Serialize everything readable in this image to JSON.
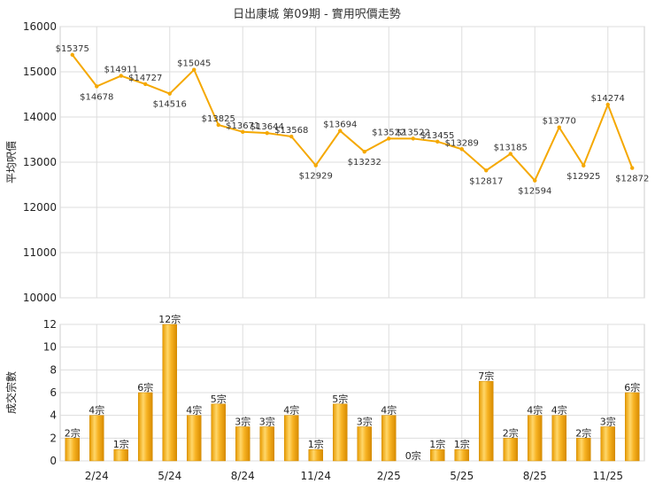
{
  "chart_data": [
    {
      "type": "line",
      "title": "日出康城 第09期 - 實用呎價走勢",
      "xlabel": "",
      "ylabel": "平均呎價",
      "ylim": [
        10000,
        16000
      ],
      "yticks": [
        "16000",
        "15000",
        "14000",
        "13000",
        "12000",
        "11000",
        "10000"
      ],
      "grid": true,
      "color": "#f5a800",
      "labels": [
        "$15375",
        "$14678",
        "$14911",
        "$14727",
        "$14516",
        "$15045",
        "$13825",
        "$13671",
        "$13644",
        "$13568",
        "$12929",
        "$13694",
        "$13232",
        "$13522",
        "$13522",
        "$13455",
        "$13289",
        "$12817",
        "$13185",
        "$12594",
        "$13770",
        "$12925",
        "$14274",
        "$12872"
      ],
      "series": [
        {
          "values": [
            15375,
            14678,
            14911,
            14727,
            14516,
            15045,
            13825,
            13671,
            13644,
            13568,
            12929,
            13694,
            13232,
            13522,
            13522,
            13455,
            13289,
            12817,
            13185,
            12594,
            13770,
            12925,
            14274,
            12872
          ]
        }
      ]
    },
    {
      "type": "bar",
      "xlabel": "",
      "ylabel": "成交宗數",
      "ylim": [
        0,
        12
      ],
      "yticks": [
        "12",
        "10",
        "8",
        "6",
        "4",
        "2",
        "0"
      ],
      "grid": true,
      "color": "#f5a800",
      "categories": [
        "",
        "2/24",
        "",
        "",
        "5/24",
        "",
        "",
        "8/24",
        "",
        "",
        "11/24",
        "",
        "",
        "2/25",
        "",
        "",
        "5/25",
        "",
        "",
        "8/25",
        "",
        "",
        "11/25",
        ""
      ],
      "labels": [
        "2宗",
        "4宗",
        "1宗",
        "6宗",
        "12宗",
        "4宗",
        "5宗",
        "3宗",
        "3宗",
        "4宗",
        "1宗",
        "5宗",
        "3宗",
        "4宗",
        "0宗",
        "1宗",
        "1宗",
        "7宗",
        "2宗",
        "4宗",
        "4宗",
        "2宗",
        "3宗",
        "6宗"
      ],
      "series": [
        {
          "values": [
            2,
            4,
            1,
            6,
            12,
            4,
            5,
            3,
            3,
            4,
            1,
            5,
            3,
            4,
            0,
            1,
            1,
            7,
            2,
            4,
            4,
            2,
            3,
            6
          ]
        }
      ]
    }
  ]
}
